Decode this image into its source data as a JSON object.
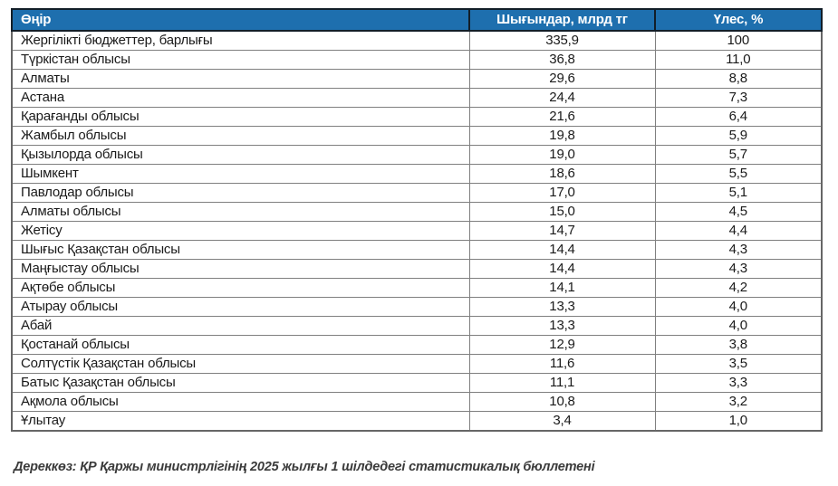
{
  "table": {
    "columns": {
      "region": "Өңір",
      "spending": "Шығындар, млрд тг",
      "share": "Үлес, %"
    },
    "rows": [
      {
        "region": "Жергілікті бюджеттер, барлығы",
        "spending": "335,9",
        "share": "100"
      },
      {
        "region": "Түркістан облысы",
        "spending": "36,8",
        "share": "11,0"
      },
      {
        "region": "Алматы",
        "spending": "29,6",
        "share": "8,8"
      },
      {
        "region": "Астана",
        "spending": "24,4",
        "share": "7,3"
      },
      {
        "region": "Қарағанды облысы",
        "spending": "21,6",
        "share": "6,4"
      },
      {
        "region": "Жамбыл облысы",
        "spending": "19,8",
        "share": "5,9"
      },
      {
        "region": "Қызылорда облысы",
        "spending": "19,0",
        "share": "5,7"
      },
      {
        "region": "Шымкент",
        "spending": "18,6",
        "share": "5,5"
      },
      {
        "region": "Павлодар облысы",
        "spending": "17,0",
        "share": "5,1"
      },
      {
        "region": "Алматы облысы",
        "spending": "15,0",
        "share": "4,5"
      },
      {
        "region": "Жетісу",
        "spending": "14,7",
        "share": "4,4"
      },
      {
        "region": "Шығыс Қазақстан облысы",
        "spending": "14,4",
        "share": "4,3"
      },
      {
        "region": "Маңғыстау облысы",
        "spending": "14,4",
        "share": "4,3"
      },
      {
        "region": "Ақтөбе облысы",
        "spending": "14,1",
        "share": "4,2"
      },
      {
        "region": "Атырау облысы",
        "spending": "13,3",
        "share": "4,0"
      },
      {
        "region": "Абай",
        "spending": "13,3",
        "share": "4,0"
      },
      {
        "region": "Қостанай облысы",
        "spending": "12,9",
        "share": "3,8"
      },
      {
        "region": "Солтүстік Қазақстан облысы",
        "spending": "11,6",
        "share": "3,5"
      },
      {
        "region": "Батыс Қазақстан облысы",
        "spending": "11,1",
        "share": "3,3"
      },
      {
        "region": "Ақмола облысы",
        "spending": "10,8",
        "share": "3,2"
      },
      {
        "region": "Ұлытау",
        "spending": "3,4",
        "share": "1,0"
      }
    ]
  },
  "footer": {
    "source": "Дереккөз: ҚР Қаржы министрлігінің 2025 жылғы 1 шілдедегі статистикалық бюллетені"
  },
  "colors": {
    "header_bg": "#1E6FAE",
    "header_text": "#FFFFFF",
    "header_border": "#121E28",
    "body_border": "#7F7F7F",
    "body_text": "#1A1A1A",
    "note_text": "#3B3B3B"
  }
}
